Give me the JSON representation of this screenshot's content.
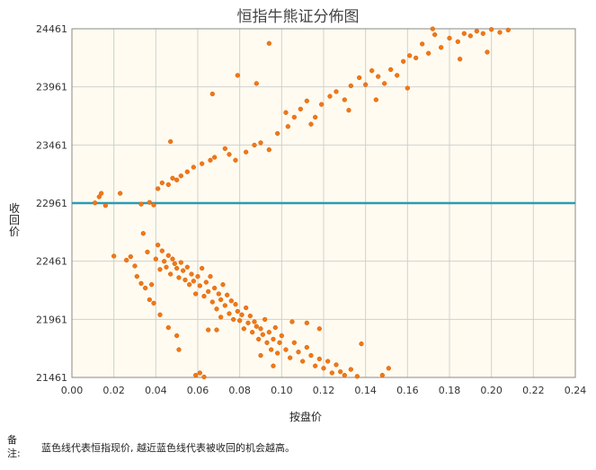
{
  "chart_data": {
    "type": "scatter",
    "title": "恒指牛熊证分佈图",
    "xlabel": "按盘价",
    "ylabel": "收回价",
    "xlim": [
      0,
      0.24
    ],
    "ylim": [
      21461,
      24461
    ],
    "xticks": [
      "0.00",
      "0.02",
      "0.04",
      "0.06",
      "0.08",
      "0.10",
      "0.12",
      "0.14",
      "0.16",
      "0.18",
      "0.20",
      "0.22",
      "0.24"
    ],
    "yticks": [
      "21461",
      "21961",
      "22461",
      "22961",
      "23461",
      "23961",
      "24461"
    ],
    "reference_line": {
      "y": 22961,
      "color": "#2a9bb6"
    },
    "point_color": "#f07818",
    "grid": true,
    "series": [
      {
        "values": [
          [
            0.011,
            22963
          ],
          [
            0.013,
            23015
          ],
          [
            0.014,
            23045
          ],
          [
            0.016,
            22940
          ],
          [
            0.023,
            23045
          ],
          [
            0.033,
            22952
          ],
          [
            0.037,
            22967
          ],
          [
            0.039,
            22945
          ],
          [
            0.041,
            23085
          ],
          [
            0.043,
            23135
          ],
          [
            0.046,
            23120
          ],
          [
            0.048,
            23175
          ],
          [
            0.05,
            23160
          ],
          [
            0.052,
            23195
          ],
          [
            0.055,
            23230
          ],
          [
            0.058,
            23270
          ],
          [
            0.062,
            23300
          ],
          [
            0.066,
            23330
          ],
          [
            0.068,
            23355
          ],
          [
            0.073,
            23430
          ],
          [
            0.075,
            23380
          ],
          [
            0.078,
            23330
          ],
          [
            0.083,
            23400
          ],
          [
            0.087,
            23460
          ],
          [
            0.09,
            23480
          ],
          [
            0.094,
            23420
          ],
          [
            0.098,
            23560
          ],
          [
            0.103,
            23620
          ],
          [
            0.106,
            23700
          ],
          [
            0.109,
            23770
          ],
          [
            0.112,
            23840
          ],
          [
            0.116,
            23700
          ],
          [
            0.119,
            23810
          ],
          [
            0.123,
            23880
          ],
          [
            0.126,
            23920
          ],
          [
            0.13,
            23850
          ],
          [
            0.133,
            23970
          ],
          [
            0.137,
            24040
          ],
          [
            0.14,
            23980
          ],
          [
            0.143,
            24100
          ],
          [
            0.146,
            24050
          ],
          [
            0.149,
            23990
          ],
          [
            0.152,
            24110
          ],
          [
            0.155,
            24060
          ],
          [
            0.158,
            24180
          ],
          [
            0.161,
            24230
          ],
          [
            0.164,
            24210
          ],
          [
            0.167,
            24330
          ],
          [
            0.17,
            24250
          ],
          [
            0.173,
            24410
          ],
          [
            0.176,
            24300
          ],
          [
            0.18,
            24380
          ],
          [
            0.184,
            24350
          ],
          [
            0.187,
            24420
          ],
          [
            0.19,
            24400
          ],
          [
            0.193,
            24440
          ],
          [
            0.196,
            24420
          ],
          [
            0.2,
            24455
          ],
          [
            0.204,
            24430
          ],
          [
            0.208,
            24450
          ],
          [
            0.094,
            24335
          ],
          [
            0.079,
            24060
          ],
          [
            0.088,
            23990
          ],
          [
            0.067,
            23900
          ],
          [
            0.047,
            23490
          ],
          [
            0.102,
            23740
          ],
          [
            0.114,
            23640
          ],
          [
            0.132,
            23760
          ],
          [
            0.145,
            23850
          ],
          [
            0.16,
            23950
          ],
          [
            0.172,
            24460
          ],
          [
            0.185,
            24200
          ],
          [
            0.198,
            24260
          ],
          [
            0.02,
            22505
          ],
          [
            0.026,
            22470
          ],
          [
            0.028,
            22500
          ],
          [
            0.03,
            22420
          ],
          [
            0.031,
            22330
          ],
          [
            0.033,
            22270
          ],
          [
            0.034,
            22700
          ],
          [
            0.036,
            22540
          ],
          [
            0.038,
            22260
          ],
          [
            0.039,
            22100
          ],
          [
            0.04,
            22480
          ],
          [
            0.041,
            22600
          ],
          [
            0.042,
            22390
          ],
          [
            0.043,
            22550
          ],
          [
            0.044,
            22460
          ],
          [
            0.045,
            22410
          ],
          [
            0.046,
            22510
          ],
          [
            0.047,
            22350
          ],
          [
            0.048,
            22480
          ],
          [
            0.049,
            22440
          ],
          [
            0.05,
            22400
          ],
          [
            0.051,
            22320
          ],
          [
            0.052,
            22450
          ],
          [
            0.053,
            22380
          ],
          [
            0.054,
            22300
          ],
          [
            0.055,
            22410
          ],
          [
            0.056,
            22260
          ],
          [
            0.057,
            22350
          ],
          [
            0.058,
            22290
          ],
          [
            0.059,
            22180
          ],
          [
            0.06,
            22330
          ],
          [
            0.061,
            22250
          ],
          [
            0.062,
            22400
          ],
          [
            0.063,
            22160
          ],
          [
            0.064,
            22280
          ],
          [
            0.065,
            22200
          ],
          [
            0.066,
            22330
          ],
          [
            0.067,
            22110
          ],
          [
            0.068,
            22230
          ],
          [
            0.069,
            22050
          ],
          [
            0.07,
            22180
          ],
          [
            0.071,
            22130
          ],
          [
            0.072,
            22260
          ],
          [
            0.073,
            22080
          ],
          [
            0.074,
            22170
          ],
          [
            0.075,
            22010
          ],
          [
            0.076,
            22120
          ],
          [
            0.077,
            21960
          ],
          [
            0.078,
            22090
          ],
          [
            0.079,
            22030
          ],
          [
            0.08,
            21950
          ],
          [
            0.081,
            22000
          ],
          [
            0.082,
            21880
          ],
          [
            0.083,
            22060
          ],
          [
            0.084,
            21930
          ],
          [
            0.085,
            21990
          ],
          [
            0.086,
            21850
          ],
          [
            0.087,
            21940
          ],
          [
            0.088,
            21900
          ],
          [
            0.089,
            21790
          ],
          [
            0.09,
            21880
          ],
          [
            0.091,
            21830
          ],
          [
            0.092,
            21960
          ],
          [
            0.093,
            21760
          ],
          [
            0.094,
            21850
          ],
          [
            0.095,
            21700
          ],
          [
            0.096,
            21790
          ],
          [
            0.097,
            21890
          ],
          [
            0.098,
            21670
          ],
          [
            0.099,
            21760
          ],
          [
            0.1,
            21820
          ],
          [
            0.102,
            21700
          ],
          [
            0.104,
            21630
          ],
          [
            0.106,
            21760
          ],
          [
            0.108,
            21680
          ],
          [
            0.11,
            21600
          ],
          [
            0.112,
            21720
          ],
          [
            0.114,
            21650
          ],
          [
            0.116,
            21560
          ],
          [
            0.118,
            21620
          ],
          [
            0.12,
            21540
          ],
          [
            0.122,
            21600
          ],
          [
            0.124,
            21500
          ],
          [
            0.126,
            21570
          ],
          [
            0.128,
            21510
          ],
          [
            0.13,
            21480
          ],
          [
            0.133,
            21530
          ],
          [
            0.136,
            21470
          ],
          [
            0.138,
            21750
          ],
          [
            0.148,
            21480
          ],
          [
            0.151,
            21540
          ],
          [
            0.059,
            21480
          ],
          [
            0.061,
            21500
          ],
          [
            0.063,
            21465
          ],
          [
            0.069,
            21870
          ],
          [
            0.071,
            21980
          ],
          [
            0.05,
            21820
          ],
          [
            0.051,
            21700
          ],
          [
            0.046,
            21890
          ],
          [
            0.042,
            22000
          ],
          [
            0.037,
            22130
          ],
          [
            0.035,
            22230
          ],
          [
            0.065,
            21870
          ],
          [
            0.105,
            21940
          ],
          [
            0.112,
            21930
          ],
          [
            0.118,
            21880
          ],
          [
            0.096,
            21560
          ],
          [
            0.09,
            21650
          ]
        ]
      }
    ]
  },
  "note": {
    "key": "备注:",
    "text": "蓝色线代表恒指现价, 越近蓝色线代表被收回的机会越高。"
  }
}
